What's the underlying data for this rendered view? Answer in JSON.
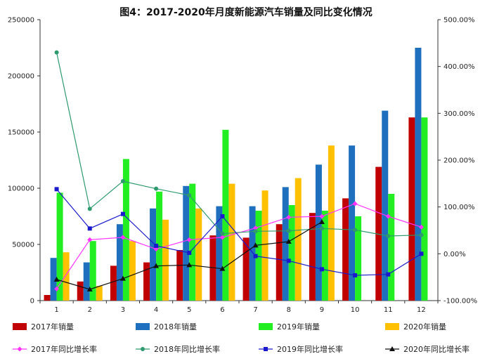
{
  "chart_data": {
    "type": "bar",
    "title": "图4：2017-2020年月度新能源汽车销量及同比变化情况",
    "categories": [
      "1",
      "2",
      "3",
      "4",
      "5",
      "6",
      "7",
      "8",
      "9",
      "10",
      "11",
      "12"
    ],
    "left_axis": {
      "min": 0,
      "max": 250000,
      "step": 50000,
      "ticks": [
        "0",
        "50000",
        "100000",
        "150000",
        "200000",
        "250000"
      ]
    },
    "right_axis": {
      "min": -100,
      "max": 500,
      "step": 100,
      "ticks": [
        "-100.00%",
        "0.00%",
        "100.00%",
        "200.00%",
        "300.00%",
        "400.00%",
        "500.00%"
      ]
    },
    "bar_series": [
      {
        "name": "2017年销量",
        "color": "#c00000",
        "values": [
          5000,
          17000,
          31000,
          34000,
          45000,
          58000,
          56000,
          68000,
          78000,
          91000,
          119000,
          163000
        ]
      },
      {
        "name": "2018年销量",
        "color": "#1f6fbf",
        "values": [
          38000,
          34000,
          68000,
          82000,
          102000,
          84000,
          84000,
          101000,
          121000,
          138000,
          169000,
          225000
        ]
      },
      {
        "name": "2019年销量",
        "color": "#22ee22",
        "values": [
          96000,
          53000,
          126000,
          97000,
          104000,
          152000,
          80000,
          85000,
          80000,
          75000,
          95000,
          163000
        ]
      },
      {
        "name": "2020年销量",
        "color": "#ffc000",
        "values": [
          43000,
          13000,
          53000,
          72000,
          82000,
          104000,
          98000,
          109000,
          138000,
          null,
          null,
          null
        ]
      }
    ],
    "line_series": [
      {
        "name": "2017年同比增长率",
        "color": "#ff33ff",
        "marker": "diamond",
        "values": [
          -75,
          30,
          35,
          10,
          30,
          35,
          55,
          78,
          80,
          107,
          80,
          57
        ]
      },
      {
        "name": "2018年同比增长率",
        "color": "#2e9a6e",
        "marker": "circle",
        "values": [
          430,
          96,
          155,
          139,
          125,
          43,
          48,
          49,
          54,
          51,
          38,
          40
        ]
      },
      {
        "name": "2019年同比增长率",
        "color": "#1a1acc",
        "marker": "square",
        "values": [
          138,
          54,
          85,
          17,
          2,
          80,
          -5,
          -15,
          -33,
          -46,
          -44,
          0
        ]
      },
      {
        "name": "2020年同比增长率",
        "color": "#111111",
        "marker": "triangle",
        "values": [
          -55,
          -76,
          -53,
          -26,
          -24,
          -32,
          18,
          26,
          68,
          null,
          null,
          null
        ]
      }
    ],
    "legend_position": "bottom",
    "grid": false
  }
}
